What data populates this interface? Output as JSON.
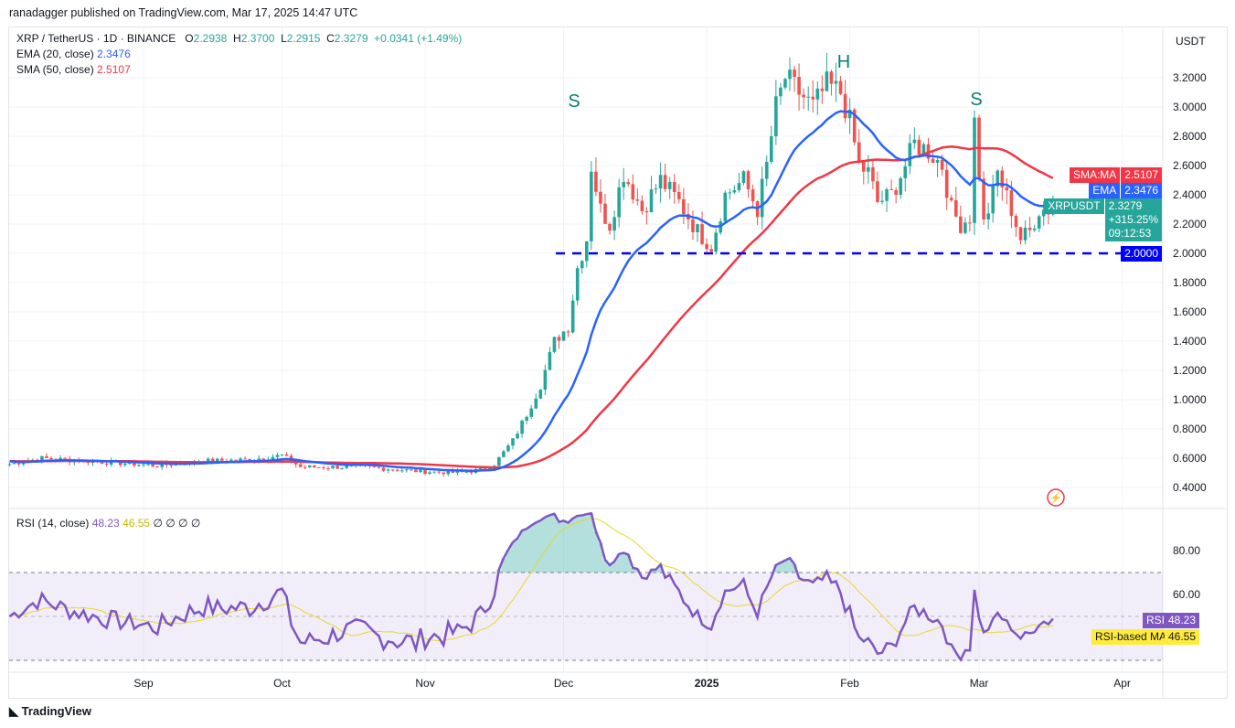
{
  "publisher": "ranadagger published on TradingView.com, Mar 17, 2025 14:47 UTC",
  "legend": {
    "symbol": "XRP / TetherUS · 1D · BINANCE",
    "o_label": "O",
    "o": "2.2938",
    "h_label": "H",
    "h": "2.3700",
    "l_label": "L",
    "l": "2.2915",
    "c_label": "C",
    "c": "2.3279",
    "change": "+0.0341 (+1.49%)",
    "ema": "EMA (20, close)",
    "ema_val": "2.3476",
    "sma": "SMA (50, close)",
    "sma_val": "2.5107",
    "rsi": "RSI (14, close)",
    "rsi_val": "48.23",
    "rsi_ma_val": "46.55",
    "rsi_extra": "∅ ∅ ∅ ∅"
  },
  "axis": {
    "currency": "USDT",
    "price_ticks": [
      "3.2000",
      "3.0000",
      "2.8000",
      "2.6000",
      "2.4000",
      "2.2000",
      "2.0000",
      "1.8000",
      "1.6000",
      "1.4000",
      "1.2000",
      "1.0000",
      "0.8000",
      "0.6000",
      "0.4000"
    ],
    "rsi_ticks": [
      "80.00",
      "60.00"
    ],
    "time_ticks": [
      "Sep",
      "Oct",
      "Nov",
      "Dec",
      "2025",
      "Feb",
      "Mar",
      "Apr"
    ]
  },
  "tags": {
    "sma_label": "SMA:MA",
    "sma_val": "2.5107",
    "ema_label": "EMA",
    "ema_val": "2.3476",
    "sym_label": "XRPUSDT",
    "price": "2.3279",
    "pct": "+315.25%",
    "countdown": "09:12:53",
    "level": "2.0000",
    "rsi_label": "RSI",
    "rsi_val": "48.23",
    "rsi_ma_label": "RSI-based MA",
    "rsi_ma_val": "46.55"
  },
  "annotations": [
    "S",
    "H",
    "S"
  ],
  "footer": "TradingView",
  "colors": {
    "up": "#26a69a",
    "down": "#ef5350",
    "ema": "#2962ff",
    "sma": "#f23645",
    "rsi": "#7e57c2",
    "rsi_ma": "#e6d72a",
    "level": "#0000ff"
  },
  "chart_data": {
    "type": "candlestick",
    "symbol": "XRPUSDT",
    "interval": "1D",
    "start_date": "2024-07-31",
    "key_closes": [
      [
        3,
        0.56
      ],
      [
        10,
        0.6
      ],
      [
        20,
        0.58
      ],
      [
        35,
        0.55
      ],
      [
        45,
        0.58
      ],
      [
        55,
        0.59
      ],
      [
        62,
        0.62
      ],
      [
        66,
        0.54
      ],
      [
        80,
        0.54
      ],
      [
        92,
        0.51
      ],
      [
        100,
        0.5
      ],
      [
        105,
        0.52
      ],
      [
        108,
        0.56
      ],
      [
        112,
        0.72
      ],
      [
        115,
        0.9
      ],
      [
        118,
        1.1
      ],
      [
        121,
        1.4
      ],
      [
        124,
        1.5
      ],
      [
        126,
        1.9
      ],
      [
        128,
        2.1
      ],
      [
        129,
        2.6
      ],
      [
        131,
        2.3
      ],
      [
        133,
        2.2
      ],
      [
        136,
        2.55
      ],
      [
        140,
        2.3
      ],
      [
        144,
        2.5
      ],
      [
        148,
        2.35
      ],
      [
        152,
        2.15
      ],
      [
        155,
        2.05
      ],
      [
        158,
        2.4
      ],
      [
        162,
        2.5
      ],
      [
        165,
        2.3
      ],
      [
        167,
        2.6
      ],
      [
        169,
        3.0
      ],
      [
        171,
        3.2
      ],
      [
        174,
        3.1
      ],
      [
        177,
        3.0
      ],
      [
        180,
        3.15
      ],
      [
        183,
        3.1
      ],
      [
        185,
        2.9
      ],
      [
        187,
        2.6
      ],
      [
        189,
        2.55
      ],
      [
        191,
        2.35
      ],
      [
        194,
        2.4
      ],
      [
        197,
        2.6
      ],
      [
        199,
        2.75
      ],
      [
        202,
        2.7
      ],
      [
        205,
        2.6
      ],
      [
        207,
        2.3
      ],
      [
        209,
        2.2
      ],
      [
        211,
        2.25
      ],
      [
        212,
        2.9
      ],
      [
        214,
        2.2
      ],
      [
        216,
        2.4
      ],
      [
        217,
        2.55
      ],
      [
        220,
        2.3
      ],
      [
        222,
        2.1
      ],
      [
        224,
        2.15
      ],
      [
        226,
        2.3
      ],
      [
        228,
        2.3
      ],
      [
        229,
        2.33
      ]
    ],
    "ylim": [
      0.3,
      3.4
    ],
    "support_level": 2.0,
    "rsi_levels": [
      70,
      30
    ]
  }
}
